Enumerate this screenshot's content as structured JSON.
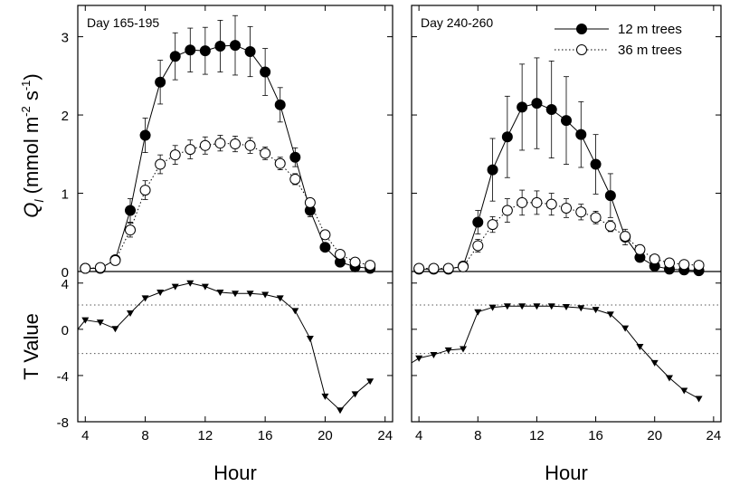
{
  "chart_data": {
    "type": "line",
    "xlabel": "Hour",
    "panels": [
      {
        "label": "Day 165-195",
        "ylabel_top": {
          "main": "Q",
          "sub": "l",
          "rest": "(mmol m",
          "exp1": "-2",
          "mid": " s",
          "exp2": "-1",
          "end": ")"
        },
        "ylabel_bottom": "T Value",
        "xticks": [
          4,
          8,
          12,
          16,
          20,
          24
        ],
        "xlim": [
          3.5,
          24.5
        ],
        "top": {
          "ylim": [
            0,
            3.4
          ],
          "yticks": [
            0,
            1,
            2,
            3
          ],
          "series": [
            {
              "name": "12 m trees",
              "marker": "filled-circle",
              "line": "solid",
              "x": [
                4,
                5,
                6,
                7,
                8,
                9,
                10,
                11,
                12,
                13,
                14,
                15,
                16,
                17,
                18,
                19,
                20,
                21,
                22,
                23
              ],
              "y": [
                0.04,
                0.04,
                0.15,
                0.78,
                1.74,
                2.42,
                2.75,
                2.83,
                2.82,
                2.88,
                2.89,
                2.81,
                2.55,
                2.13,
                1.46,
                0.78,
                0.31,
                0.12,
                0.06,
                0.04
              ],
              "err": [
                0.01,
                0.01,
                0.03,
                0.15,
                0.22,
                0.28,
                0.3,
                0.28,
                0.3,
                0.33,
                0.38,
                0.32,
                0.3,
                0.22,
                0.12,
                0.08,
                0.05,
                0.03,
                0.02,
                0.01
              ]
            },
            {
              "name": "36 m trees",
              "marker": "open-circle",
              "line": "dotted",
              "x": [
                4,
                5,
                6,
                7,
                8,
                9,
                10,
                11,
                12,
                13,
                14,
                15,
                16,
                17,
                18,
                19,
                20,
                21,
                22,
                23
              ],
              "y": [
                0.04,
                0.05,
                0.14,
                0.53,
                1.04,
                1.37,
                1.49,
                1.56,
                1.61,
                1.64,
                1.63,
                1.61,
                1.51,
                1.38,
                1.18,
                0.88,
                0.47,
                0.22,
                0.12,
                0.08
              ],
              "err": [
                0.01,
                0.01,
                0.03,
                0.09,
                0.12,
                0.12,
                0.12,
                0.12,
                0.11,
                0.1,
                0.1,
                0.1,
                0.08,
                0.08,
                0.07,
                0.05,
                0.03,
                0.02,
                0.01,
                0.01
              ]
            }
          ]
        },
        "bottom": {
          "ylim": [
            -8,
            5
          ],
          "yticks": [
            -8,
            -4,
            0,
            4
          ],
          "reference_lines": [
            2.1,
            -2.1
          ],
          "series": [
            {
              "marker": "filled-triangle-down",
              "x": [
                3.5,
                4,
                5,
                6,
                7,
                8,
                9,
                10,
                11,
                12,
                13,
                14,
                15,
                16,
                17,
                18,
                19,
                20,
                21,
                22,
                23
              ],
              "y": [
                0.0,
                0.8,
                0.6,
                0.05,
                1.4,
                2.7,
                3.2,
                3.7,
                4.0,
                3.7,
                3.2,
                3.1,
                3.1,
                3.0,
                2.7,
                1.6,
                -0.8,
                -5.8,
                -7.0,
                -5.6,
                -4.5
              ]
            }
          ]
        }
      },
      {
        "label": "Day 240-260",
        "xticks": [
          4,
          8,
          12,
          16,
          20,
          24
        ],
        "xlim": [
          3.5,
          24.5
        ],
        "legend": {
          "position": "top-right",
          "items": [
            "12 m trees",
            "36 m trees"
          ]
        },
        "top": {
          "ylim": [
            0,
            3.4
          ],
          "yticks": [
            0,
            1,
            2,
            3
          ],
          "series": [
            {
              "name": "12 m trees",
              "marker": "filled-circle",
              "line": "solid",
              "x": [
                4,
                5,
                6,
                7,
                8,
                9,
                10,
                11,
                12,
                13,
                14,
                15,
                16,
                17,
                18,
                19,
                20,
                21,
                22,
                23
              ],
              "y": [
                0.03,
                0.03,
                0.03,
                0.07,
                0.63,
                1.3,
                1.72,
                2.1,
                2.15,
                2.07,
                1.93,
                1.75,
                1.37,
                0.97,
                0.44,
                0.18,
                0.07,
                0.03,
                0.02,
                0.01
              ],
              "err": [
                0.01,
                0.01,
                0.01,
                0.03,
                0.15,
                0.4,
                0.52,
                0.55,
                0.58,
                0.62,
                0.56,
                0.42,
                0.38,
                0.28,
                0.1,
                0.05,
                0.02,
                0.01,
                0.01,
                0.01
              ]
            },
            {
              "name": "36 m trees",
              "marker": "open-circle",
              "line": "dotted",
              "x": [
                4,
                5,
                6,
                7,
                8,
                9,
                10,
                11,
                12,
                13,
                14,
                15,
                16,
                17,
                18,
                19,
                20,
                21,
                22,
                23
              ],
              "y": [
                0.04,
                0.04,
                0.04,
                0.06,
                0.33,
                0.6,
                0.78,
                0.88,
                0.88,
                0.86,
                0.81,
                0.76,
                0.69,
                0.58,
                0.45,
                0.28,
                0.16,
                0.11,
                0.09,
                0.08
              ],
              "err": [
                0.01,
                0.01,
                0.01,
                0.02,
                0.08,
                0.1,
                0.15,
                0.16,
                0.15,
                0.14,
                0.12,
                0.1,
                0.08,
                0.07,
                0.06,
                0.04,
                0.02,
                0.02,
                0.02,
                0.02
              ]
            }
          ]
        },
        "bottom": {
          "ylim": [
            -8,
            5
          ],
          "yticks": [
            -8,
            -4,
            0,
            4
          ],
          "reference_lines": [
            2.1,
            -2.1
          ],
          "series": [
            {
              "marker": "filled-triangle-down",
              "x": [
                3.5,
                4,
                5,
                6,
                7,
                8,
                9,
                10,
                11,
                12,
                13,
                14,
                15,
                16,
                17,
                18,
                19,
                20,
                21,
                22,
                23
              ],
              "y": [
                -2.9,
                -2.5,
                -2.2,
                -1.8,
                -1.7,
                1.5,
                1.9,
                2.0,
                2.0,
                2.0,
                2.0,
                1.95,
                1.85,
                1.7,
                1.3,
                0.1,
                -1.5,
                -2.9,
                -4.2,
                -5.3,
                -6.0
              ]
            }
          ]
        }
      }
    ]
  }
}
